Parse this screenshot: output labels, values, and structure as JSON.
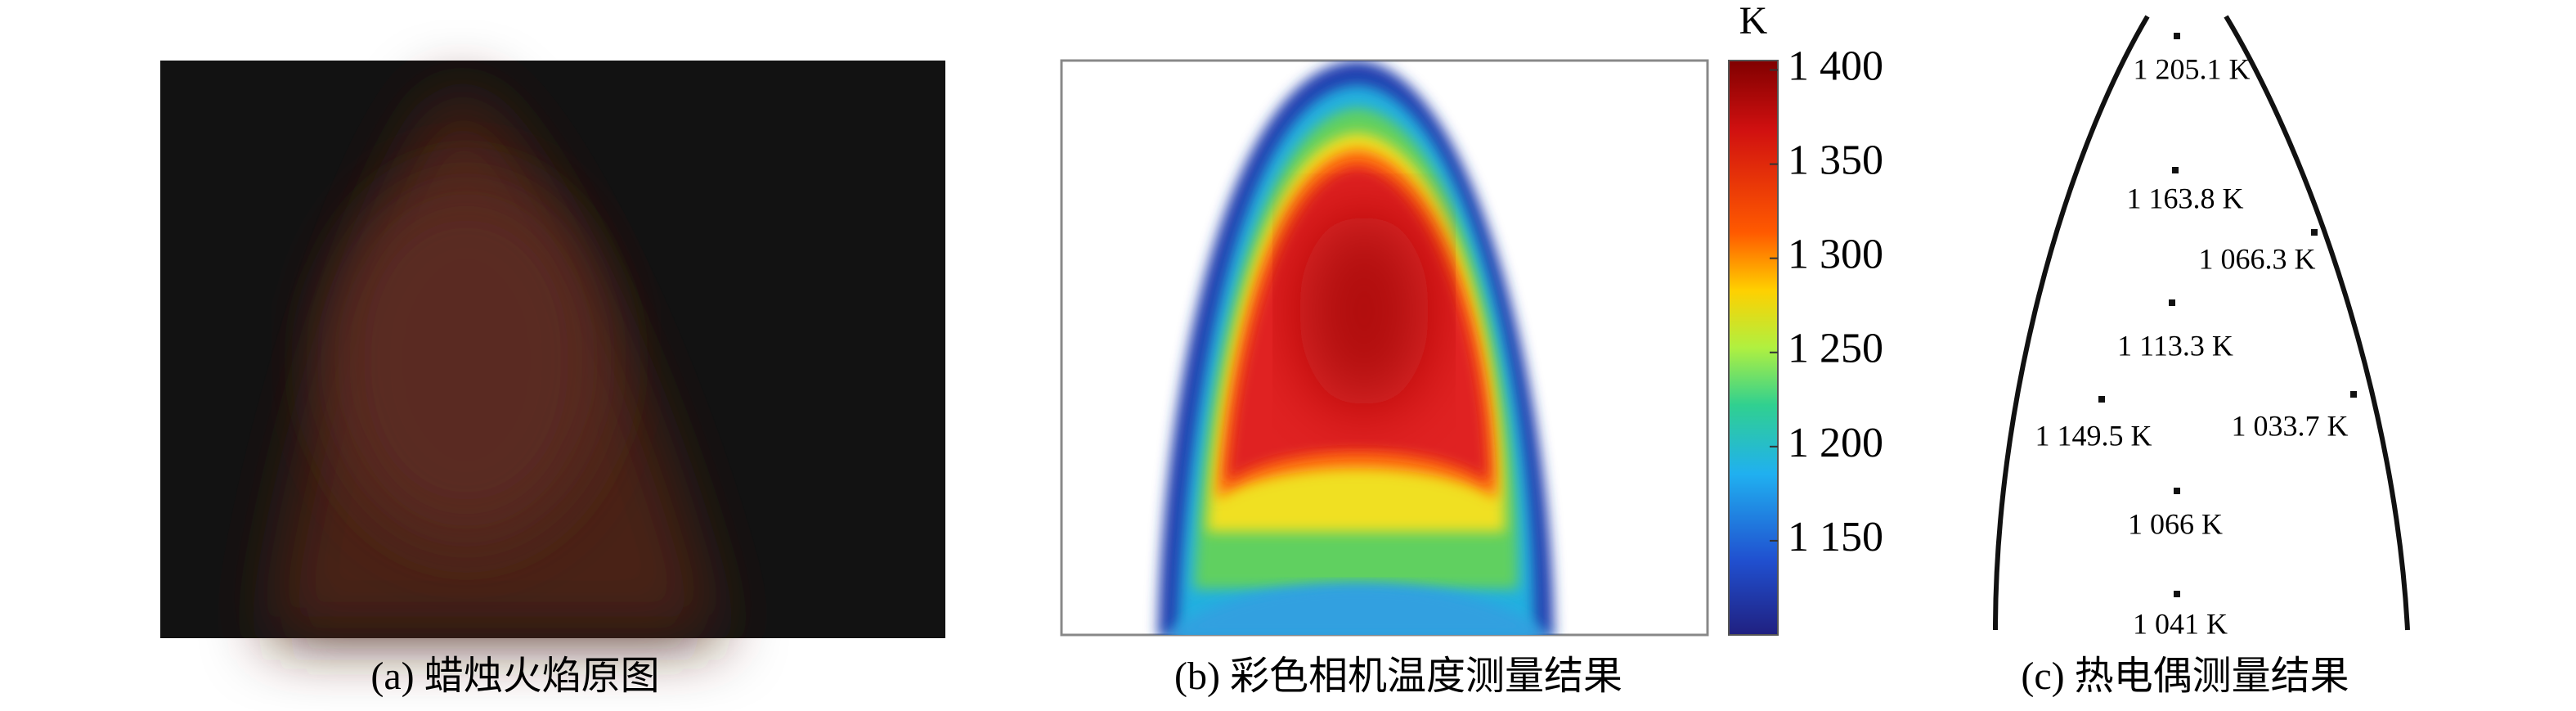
{
  "panels": [
    {
      "caption": "(a) 蜡烛火焰原图"
    },
    {
      "caption": "(b) 彩色相机温度测量结果",
      "colorbar": {
        "unit": "K",
        "clim": [
          1100,
          1405
        ],
        "ticks": [
          {
            "value": 1150,
            "label": "1 150"
          },
          {
            "value": 1200,
            "label": "1 200"
          },
          {
            "value": 1250,
            "label": "1 250"
          },
          {
            "value": 1300,
            "label": "1 300"
          },
          {
            "value": 1350,
            "label": "1 350"
          },
          {
            "value": 1400,
            "label": "1 400"
          }
        ]
      }
    },
    {
      "caption": "(c) 热电偶测量结果",
      "points": [
        {
          "value": 1205.1,
          "label": "1 205.1 K"
        },
        {
          "value": 1163.8,
          "label": "1 163.8 K"
        },
        {
          "value": 1066.3,
          "label": "1 066.3 K"
        },
        {
          "value": 1113.3,
          "label": "1 113.3 K"
        },
        {
          "value": 1149.5,
          "label": "1 149.5 K"
        },
        {
          "value": 1033.7,
          "label": "1 033.7 K"
        },
        {
          "value": 1066,
          "label": "1 066 K"
        },
        {
          "value": 1041,
          "label": "1 041 K"
        }
      ]
    }
  ]
}
